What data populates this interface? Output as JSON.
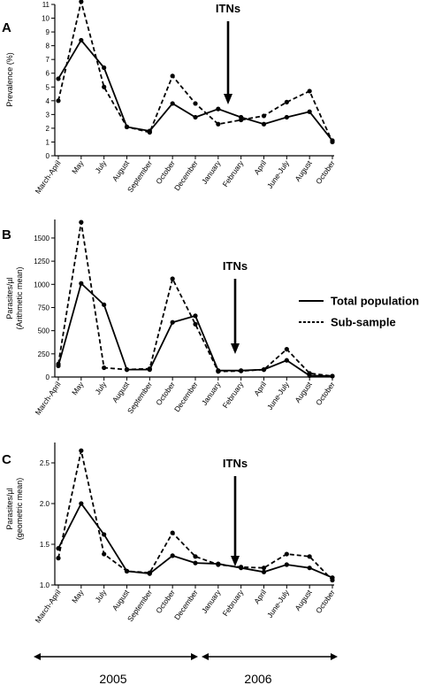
{
  "chart_data": [
    {
      "panel": "A",
      "type": "line",
      "ylabel": "Prevalence (%)",
      "ylim": [
        0,
        11
      ],
      "yticks": [
        "0",
        "1",
        "2",
        "3",
        "4",
        "5",
        "6",
        "7",
        "8",
        "9",
        "10",
        "11"
      ],
      "categories": [
        "March-April",
        "May",
        "July",
        "August",
        "September",
        "October",
        "December",
        "January",
        "February",
        "April",
        "June-July",
        "August",
        "October"
      ],
      "series": [
        {
          "style": "solid",
          "values": [
            5.6,
            8.4,
            6.4,
            2.1,
            1.8,
            3.8,
            2.8,
            3.4,
            2.8,
            2.3,
            2.8,
            3.2,
            1.1
          ]
        },
        {
          "style": "dashed",
          "values": [
            4.0,
            11.2,
            5.0,
            2.1,
            1.7,
            5.8,
            3.8,
            2.3,
            2.6,
            2.9,
            3.9,
            4.7,
            1.0
          ]
        }
      ],
      "annotation": "ITNs",
      "arrow_at_category": "February"
    },
    {
      "panel": "B",
      "type": "line",
      "ylabel_lines": [
        "Parasites/µl",
        "(Arithmetic mean)"
      ],
      "ylim": [
        0,
        1700
      ],
      "yticks": [
        "0",
        "250",
        "500",
        "750",
        "1000",
        "1250",
        "1500"
      ],
      "categories": [
        "March-April",
        "May",
        "July",
        "August",
        "September",
        "October",
        "December",
        "January",
        "February",
        "April",
        "June-July",
        "August",
        "October"
      ],
      "series": [
        {
          "name": "Total population",
          "style": "solid",
          "values": [
            120,
            1010,
            780,
            80,
            80,
            590,
            660,
            70,
            70,
            80,
            180,
            15,
            10
          ]
        },
        {
          "name": "Sub-sample",
          "style": "dashed",
          "values": [
            140,
            1670,
            100,
            80,
            90,
            1060,
            570,
            60,
            65,
            80,
            300,
            40,
            10
          ]
        }
      ],
      "annotation": "ITNs",
      "arrow_at_category": "February",
      "legend": {
        "position": "right",
        "items": [
          "Total population",
          "Sub-sample"
        ]
      }
    },
    {
      "panel": "C",
      "type": "line",
      "ylabel_lines": [
        "Parasites/µl",
        "(geometric mean)"
      ],
      "ylim": [
        1.0,
        2.75
      ],
      "yticks": [
        "1.0",
        "1.5",
        "2.0",
        "2.5"
      ],
      "categories": [
        "March-April",
        "May",
        "July",
        "August",
        "September",
        "October",
        "December",
        "January",
        "February",
        "April",
        "June-July",
        "August",
        "October"
      ],
      "series": [
        {
          "style": "solid",
          "values": [
            1.45,
            2.0,
            1.62,
            1.17,
            1.14,
            1.36,
            1.27,
            1.26,
            1.21,
            1.16,
            1.25,
            1.21,
            1.09
          ]
        },
        {
          "style": "dashed",
          "values": [
            1.33,
            2.65,
            1.38,
            1.17,
            1.15,
            1.64,
            1.35,
            1.25,
            1.22,
            1.21,
            1.38,
            1.35,
            1.06
          ]
        }
      ],
      "annotation": "ITNs",
      "arrow_at_category": "February"
    }
  ],
  "years": [
    "2005",
    "2006"
  ]
}
